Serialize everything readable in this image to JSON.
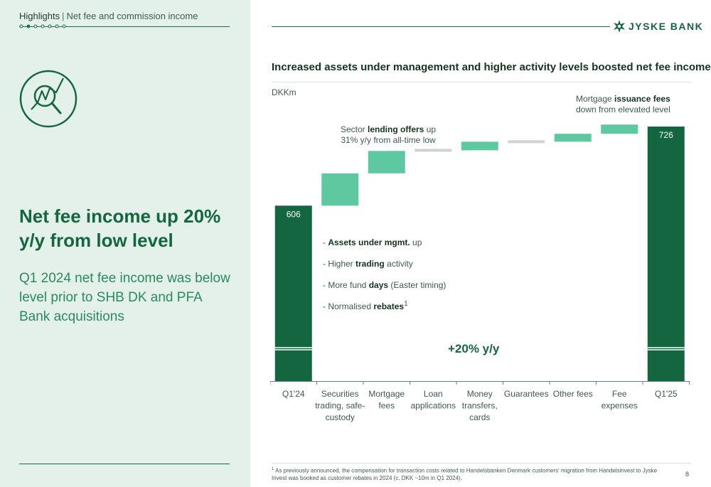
{
  "breadcrumb": {
    "highlight": "Highlights",
    "section": "Net fee and commission income"
  },
  "headline": "Net fee income up 20% y/y from low level",
  "subtext": "Q1 2024 net fee income was below level prior to SHB DK and PFA Bank acquisitions",
  "logo_text": "JYSKE BANK",
  "colors": {
    "dark_green": "#13663f",
    "light_green": "#5ec9a1",
    "grey": "#d0d3d2",
    "panel_bg": "#e4f1ea"
  },
  "icons": {
    "nav": "progress-dots-icon",
    "topic": "magnifier-chart-icon",
    "logo": "jyske-star-icon"
  },
  "annotations": {
    "mortgage_fees": {
      "pre": "Mortgage ",
      "bold": "issuance fees",
      "line2": "down from elevated level"
    },
    "lending": {
      "pre": "Sector ",
      "bold": "lending offers",
      "post": " up",
      "line2": "31% y/y from all-time low"
    }
  },
  "drivers": [
    {
      "pre": "- ",
      "bold": "Assets under mgmt.",
      "post": " up",
      "sup": ""
    },
    {
      "pre": "- Higher ",
      "bold": "trading",
      "post": " activity",
      "sup": ""
    },
    {
      "pre": "- More fund ",
      "bold": "days",
      "post": " (Easter timing)",
      "sup": ""
    },
    {
      "pre": "- Normalised ",
      "bold": "rebates",
      "post": "",
      "sup": "1"
    }
  ],
  "growth_label": "+20% y/y",
  "footnote": {
    "sup": "1",
    "text": "As previously announced, the compensation for transaction costs related to Handelsbanken Denmark customers' migration from Handelsinvest to Jyske Invest was booked as customer rebates in 2024 (c. DKK ~10m in Q1 2024)."
  },
  "page_number": "8",
  "chart_data": {
    "type": "bar",
    "subtype": "waterfall",
    "title": "Increased assets under management and higher activity levels boosted net fee income",
    "ylabel": "DKKm",
    "ylim": [
      340,
      740
    ],
    "axis_break": true,
    "categories": [
      "Q1'24",
      "Securities trading, safe-custody",
      "Mortgage fees",
      "Loan applications",
      "Money transfers, cards",
      "Guarantees",
      "Other fees",
      "Fee expenses",
      "Q1'25"
    ],
    "category_lines": [
      [
        "Q1'24"
      ],
      [
        "Securities",
        "trading, safe-",
        "custody"
      ],
      [
        "Mortgage",
        "fees"
      ],
      [
        "Loan",
        "applications"
      ],
      [
        "Money",
        "transfers,",
        "cards"
      ],
      [
        "Guarantees"
      ],
      [
        "Other fees"
      ],
      [
        "Fee",
        "expenses"
      ],
      [
        "Q1'25"
      ]
    ],
    "bars": [
      {
        "category": "Q1'24",
        "kind": "total",
        "value": 606,
        "label": "606"
      },
      {
        "category": "Securities trading, safe-custody",
        "kind": "change",
        "value": 49
      },
      {
        "category": "Mortgage fees",
        "kind": "change",
        "value": 34
      },
      {
        "category": "Loan applications",
        "kind": "change",
        "value": 1
      },
      {
        "category": "Money transfers, cards",
        "kind": "change",
        "value": 13
      },
      {
        "category": "Guarantees",
        "kind": "change",
        "value": 0
      },
      {
        "category": "Other fees",
        "kind": "change",
        "value": 12
      },
      {
        "category": "Fee expenses",
        "kind": "change",
        "value": 14
      },
      {
        "category": "Q1'25",
        "kind": "total",
        "value": 726,
        "label": "726"
      }
    ]
  }
}
